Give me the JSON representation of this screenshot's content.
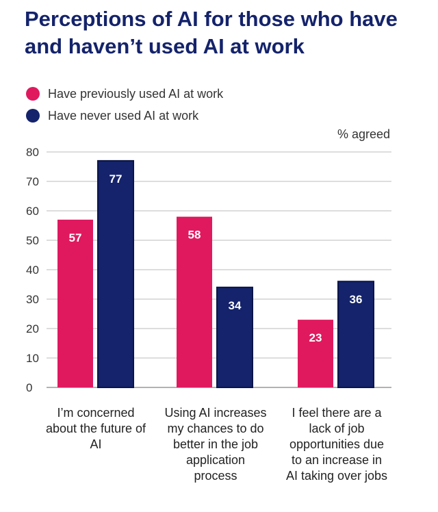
{
  "title": "Perceptions of AI for those who have and haven’t used AI at work",
  "unit_label": "% agreed",
  "colors": {
    "used": "#e0195f",
    "never": "#14236b",
    "grid": "#bbbbbb",
    "title": "#14236b"
  },
  "chart_data": {
    "type": "bar",
    "categories": [
      "I’m concerned about the future of AI",
      "Using AI increases my chances to do better in the job application process",
      "I feel there are a lack of job opportunities due to an increase in AI taking over jobs"
    ],
    "series": [
      {
        "name": "Have previously used AI at work",
        "values": [
          57,
          58,
          23
        ]
      },
      {
        "name": "Have never used AI at work",
        "values": [
          77,
          34,
          36
        ]
      }
    ],
    "ylim": [
      0,
      80
    ],
    "yticks": [
      0,
      10,
      20,
      30,
      40,
      50,
      60,
      70,
      80
    ],
    "ylabel": "% agreed",
    "grid": true,
    "legend": "top-left"
  }
}
